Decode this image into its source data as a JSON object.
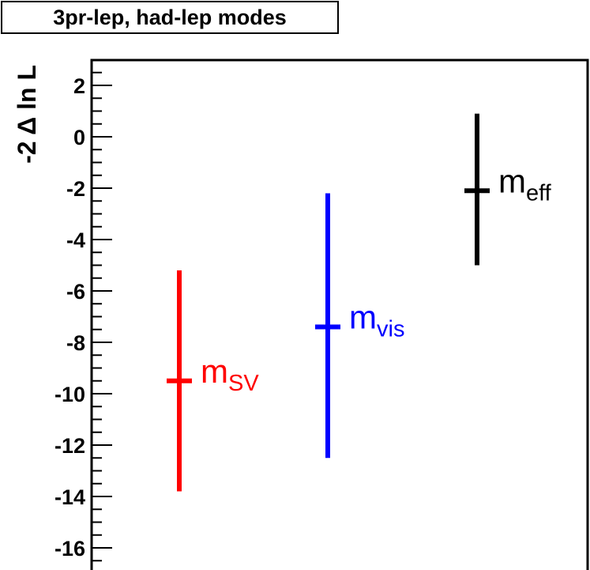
{
  "chart_data": {
    "type": "scatter",
    "title": "3pr-lep, had-lep modes",
    "ylabel": "-2 Δ ln L",
    "xlabel": "",
    "ylim": [
      -17.1,
      3.0
    ],
    "yticks": [
      2,
      0,
      -2,
      -4,
      -6,
      -8,
      -10,
      -12,
      -14,
      -16
    ],
    "ytick_labels": [
      "2",
      "0",
      "-2",
      "-4",
      "-6",
      "-8",
      "-10",
      "-12",
      "-14",
      "-16"
    ],
    "grid": false,
    "points": [
      {
        "base": "m",
        "sub": "SV",
        "x": 1,
        "y": -9.5,
        "y_low": -13.8,
        "y_high": -5.2,
        "color": "#ff0000"
      },
      {
        "base": "m",
        "sub": "vis",
        "x": 2,
        "y": -7.4,
        "y_low": -12.5,
        "y_high": -2.2,
        "color": "#0000ff"
      },
      {
        "base": "m",
        "sub": "eff",
        "x": 3,
        "y": -2.1,
        "y_low": -5.0,
        "y_high": 0.9,
        "color": "#000000"
      }
    ]
  }
}
